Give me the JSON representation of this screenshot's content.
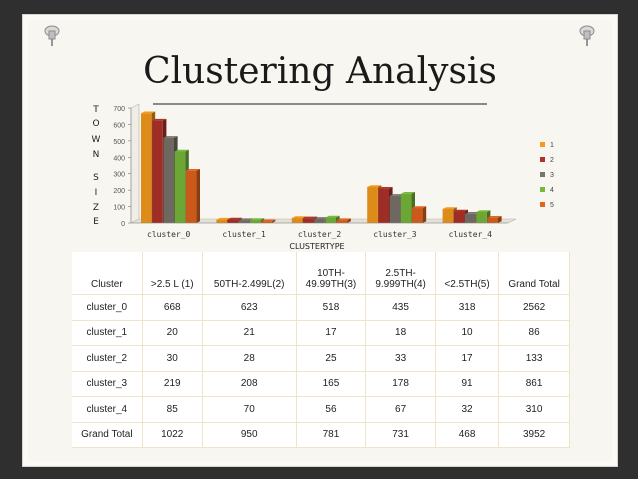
{
  "slide": {
    "title": "Clustering Analysis"
  },
  "colors": {
    "series": [
      "#f59a1c",
      "#b0322a",
      "#7a746b",
      "#78b83a",
      "#e2641d"
    ],
    "table_border": "#efe3c8",
    "background": "#2f2f2f"
  },
  "chart_data": {
    "type": "bar",
    "style": "3d-clustered-column",
    "title": "",
    "xlabel": "CLUSTERTYPE",
    "ylabel": "T O W N   S I Z E",
    "ylim": [
      0,
      700
    ],
    "yticks": [
      0,
      100,
      200,
      300,
      400,
      500,
      600,
      700
    ],
    "grid": false,
    "legend": "right",
    "categories": [
      "cluster_0",
      "cluster_1",
      "cluster_2",
      "cluster_3",
      "cluster_4"
    ],
    "series": [
      {
        "name": "1",
        "values": [
          668,
          20,
          30,
          219,
          85
        ]
      },
      {
        "name": "2",
        "values": [
          623,
          21,
          28,
          208,
          70
        ]
      },
      {
        "name": "3",
        "values": [
          518,
          17,
          25,
          165,
          56
        ]
      },
      {
        "name": "4",
        "values": [
          435,
          18,
          33,
          178,
          67
        ]
      },
      {
        "name": "5",
        "values": [
          318,
          10,
          17,
          91,
          32
        ]
      }
    ]
  },
  "table": {
    "headers": [
      "Cluster",
      ">2.5 L (1)",
      "50TH-2.499L(2)",
      "10TH-\n49.99TH(3)",
      "2.5TH-\n9.999TH(4)",
      "<2.5TH(5)",
      "Grand Total"
    ],
    "rows": [
      [
        "cluster_0",
        "668",
        "623",
        "518",
        "435",
        "318",
        "2562"
      ],
      [
        "cluster_1",
        "20",
        "21",
        "17",
        "18",
        "10",
        "86"
      ],
      [
        "cluster_2",
        "30",
        "28",
        "25",
        "33",
        "17",
        "133"
      ],
      [
        "cluster_3",
        "219",
        "208",
        "165",
        "178",
        "91",
        "861"
      ],
      [
        "cluster_4",
        "85",
        "70",
        "56",
        "67",
        "32",
        "310"
      ],
      [
        "Grand Total",
        "1022",
        "950",
        "781",
        "731",
        "468",
        "3952"
      ]
    ]
  }
}
